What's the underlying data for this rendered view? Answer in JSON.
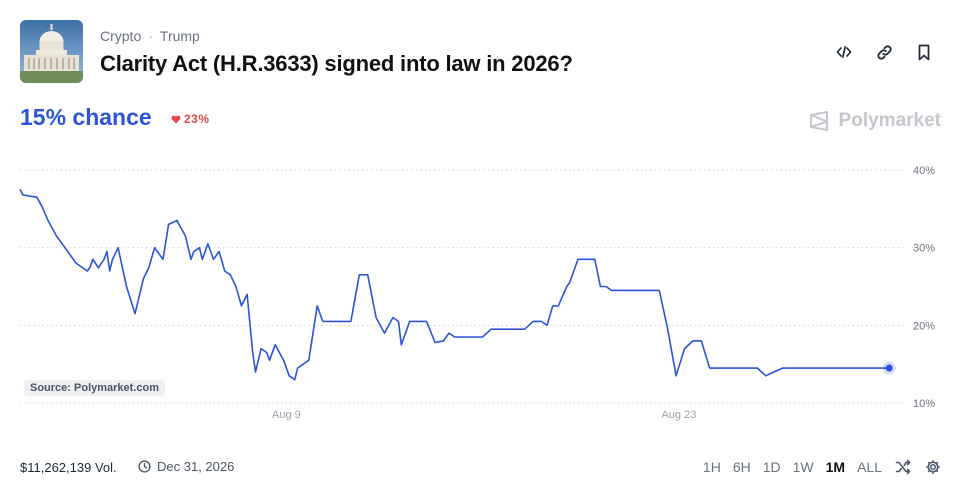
{
  "breadcrumb": [
    "Crypto",
    "Trump"
  ],
  "breadcrumb_sep": "·",
  "title": "Clarity Act (H.R.3633) signed into law in 2026?",
  "chance_label": "15% chance",
  "change_label": "23%",
  "change_direction": "down",
  "brand": "Polymarket",
  "source_badge": "Source: Polymarket.com",
  "volume": "$11,262,139 Vol.",
  "end_date": "Dec 31, 2026",
  "ranges": [
    "1H",
    "6H",
    "1D",
    "1W",
    "1M",
    "ALL"
  ],
  "active_range": "1M",
  "icons": [
    "embed-icon",
    "link-icon",
    "bookmark-icon",
    "shuffle-icon",
    "settings-icon",
    "clock-icon",
    "heart-icon",
    "capitol-building-icon",
    "polymarket-logo-icon"
  ],
  "colors": {
    "accent": "#2d54d8",
    "negative": "#e5484d",
    "grid": "#d1d5db"
  },
  "chart_data": {
    "type": "line",
    "title": "",
    "xlabel": "",
    "ylabel": "",
    "ylim": [
      10,
      40
    ],
    "yticks": [
      10,
      20,
      30,
      40
    ],
    "ytick_labels": [
      "10%",
      "20%",
      "30%",
      "40%"
    ],
    "xtick_labels": [
      "Aug 9",
      "Aug 23"
    ],
    "xtick_days": [
      9,
      23
    ],
    "xlim": [
      -0.5,
      30.6
    ],
    "grid": true,
    "series": [
      {
        "x": [
          -0.5,
          -0.4,
          0.1,
          0.3,
          0.5,
          0.8,
          1.2,
          1.5,
          1.9,
          2.0,
          2.1,
          2.3,
          2.4,
          2.5,
          2.6,
          2.7,
          2.8,
          3.0,
          3.3,
          3.6,
          3.9,
          4.1,
          4.3,
          4.6,
          4.8,
          5.1,
          5.4,
          5.6,
          5.7,
          5.9,
          6.0,
          6.2,
          6.4,
          6.6,
          6.8,
          7.0,
          7.2,
          7.4,
          7.6,
          7.8,
          7.9,
          8.1,
          8.3,
          8.4,
          8.6,
          8.9,
          9.1,
          9.3,
          9.4,
          9.6,
          9.8,
          10.1,
          10.3,
          10.5,
          10.7,
          10.9,
          11.1,
          11.3,
          11.6,
          11.9,
          12.2,
          12.5,
          12.8,
          13.0,
          13.1,
          13.4,
          13.6,
          13.7,
          13.9,
          14.0,
          14.3,
          14.6,
          14.8,
          15.0,
          15.2,
          15.5,
          15.8,
          16.0,
          16.3,
          16.6,
          16.9,
          17.2,
          17.5,
          17.8,
          18.0,
          18.1,
          18.3,
          18.5,
          18.7,
          19.0,
          19.1,
          19.4,
          19.7,
          20.0,
          20.2,
          20.4,
          20.6,
          20.9,
          21.2,
          21.5,
          21.8,
          22.1,
          22.3,
          22.6,
          22.9,
          23.2,
          23.5,
          23.8,
          24.1,
          24.3,
          24.5,
          24.7,
          24.9,
          25.1,
          25.3,
          25.5,
          25.8,
          26.1,
          26.4,
          26.7,
          27.0,
          27.3,
          27.6,
          27.9,
          28.2,
          28.5,
          28.8,
          29.1,
          29.3,
          29.5,
          29.7,
          29.9,
          30.2,
          30.5
        ],
        "y": [
          37.5,
          36.8,
          36.5,
          35.2,
          33.5,
          31.5,
          29.5,
          28.0,
          27.0,
          27.5,
          28.5,
          27.4,
          28.0,
          28.5,
          29.5,
          27.0,
          28.5,
          30.0,
          25.0,
          21.5,
          26.0,
          27.5,
          30.0,
          28.5,
          33.0,
          33.5,
          31.5,
          28.5,
          29.5,
          30.0,
          28.5,
          30.5,
          28.5,
          29.5,
          27.0,
          26.5,
          25.0,
          22.5,
          24.0,
          16.5,
          14.0,
          17.0,
          16.5,
          15.5,
          17.5,
          15.5,
          13.5,
          13.0,
          14.5,
          15.0,
          15.5,
          22.5,
          20.5,
          20.5,
          20.5,
          20.5,
          20.5,
          20.5,
          26.5,
          26.5,
          21.0,
          19.0,
          21.0,
          20.5,
          17.5,
          20.5,
          20.5,
          20.5,
          20.5,
          20.5,
          17.8,
          18.0,
          19.0,
          18.5,
          18.5,
          18.5,
          18.5,
          18.5,
          19.5,
          19.5,
          19.5,
          19.5,
          19.5,
          20.5,
          20.5,
          20.5,
          20.0,
          22.5,
          22.5,
          25.0,
          25.5,
          28.5,
          28.5,
          28.5,
          25.0,
          25.0,
          24.5,
          24.5,
          24.5,
          24.5,
          24.5,
          24.5,
          24.5,
          19.5,
          13.5,
          17.0,
          18.0,
          18.0,
          14.5,
          14.5,
          14.5,
          14.5,
          14.5,
          14.5,
          14.5,
          14.5,
          14.5,
          13.5,
          14.0,
          14.5,
          14.5,
          14.5,
          14.5,
          14.5,
          14.5,
          14.5,
          14.5,
          14.5,
          14.5,
          14.5,
          14.5,
          14.5,
          14.5,
          14.5
        ]
      }
    ]
  }
}
